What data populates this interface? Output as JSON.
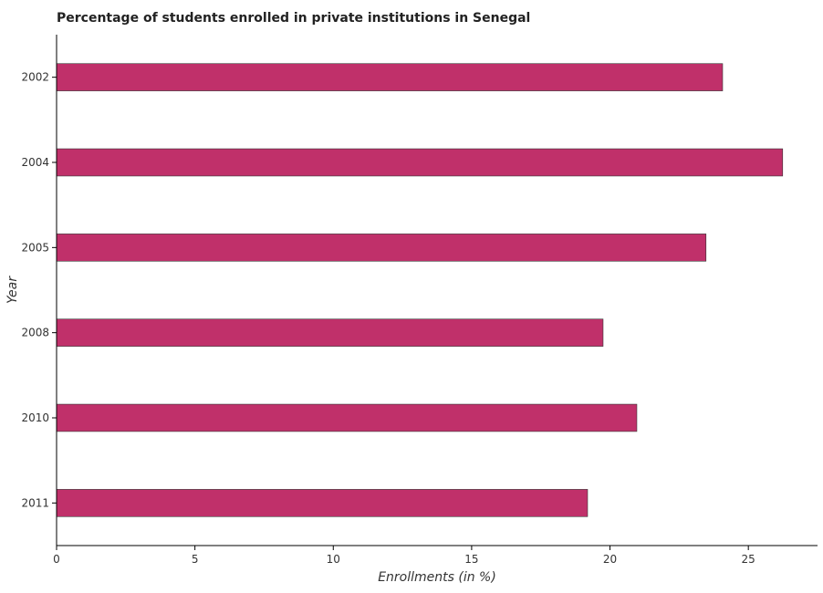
{
  "chart_data": {
    "type": "bar",
    "orientation": "horizontal",
    "title": "Percentage of students enrolled in private institutions in Senegal",
    "xlabel": "Enrollments (in %)",
    "ylabel": "Year",
    "categories": [
      "2002",
      "2004",
      "2005",
      "2008",
      "2010",
      "2011"
    ],
    "values": [
      24.07,
      26.24,
      23.47,
      19.75,
      20.97,
      19.19
    ],
    "xlim": [
      0,
      27.5
    ],
    "xticks": [
      0,
      5,
      10,
      15,
      20,
      25
    ],
    "grid": false,
    "bar_color": "#c0306a",
    "bar_edge_color": "#333333"
  }
}
